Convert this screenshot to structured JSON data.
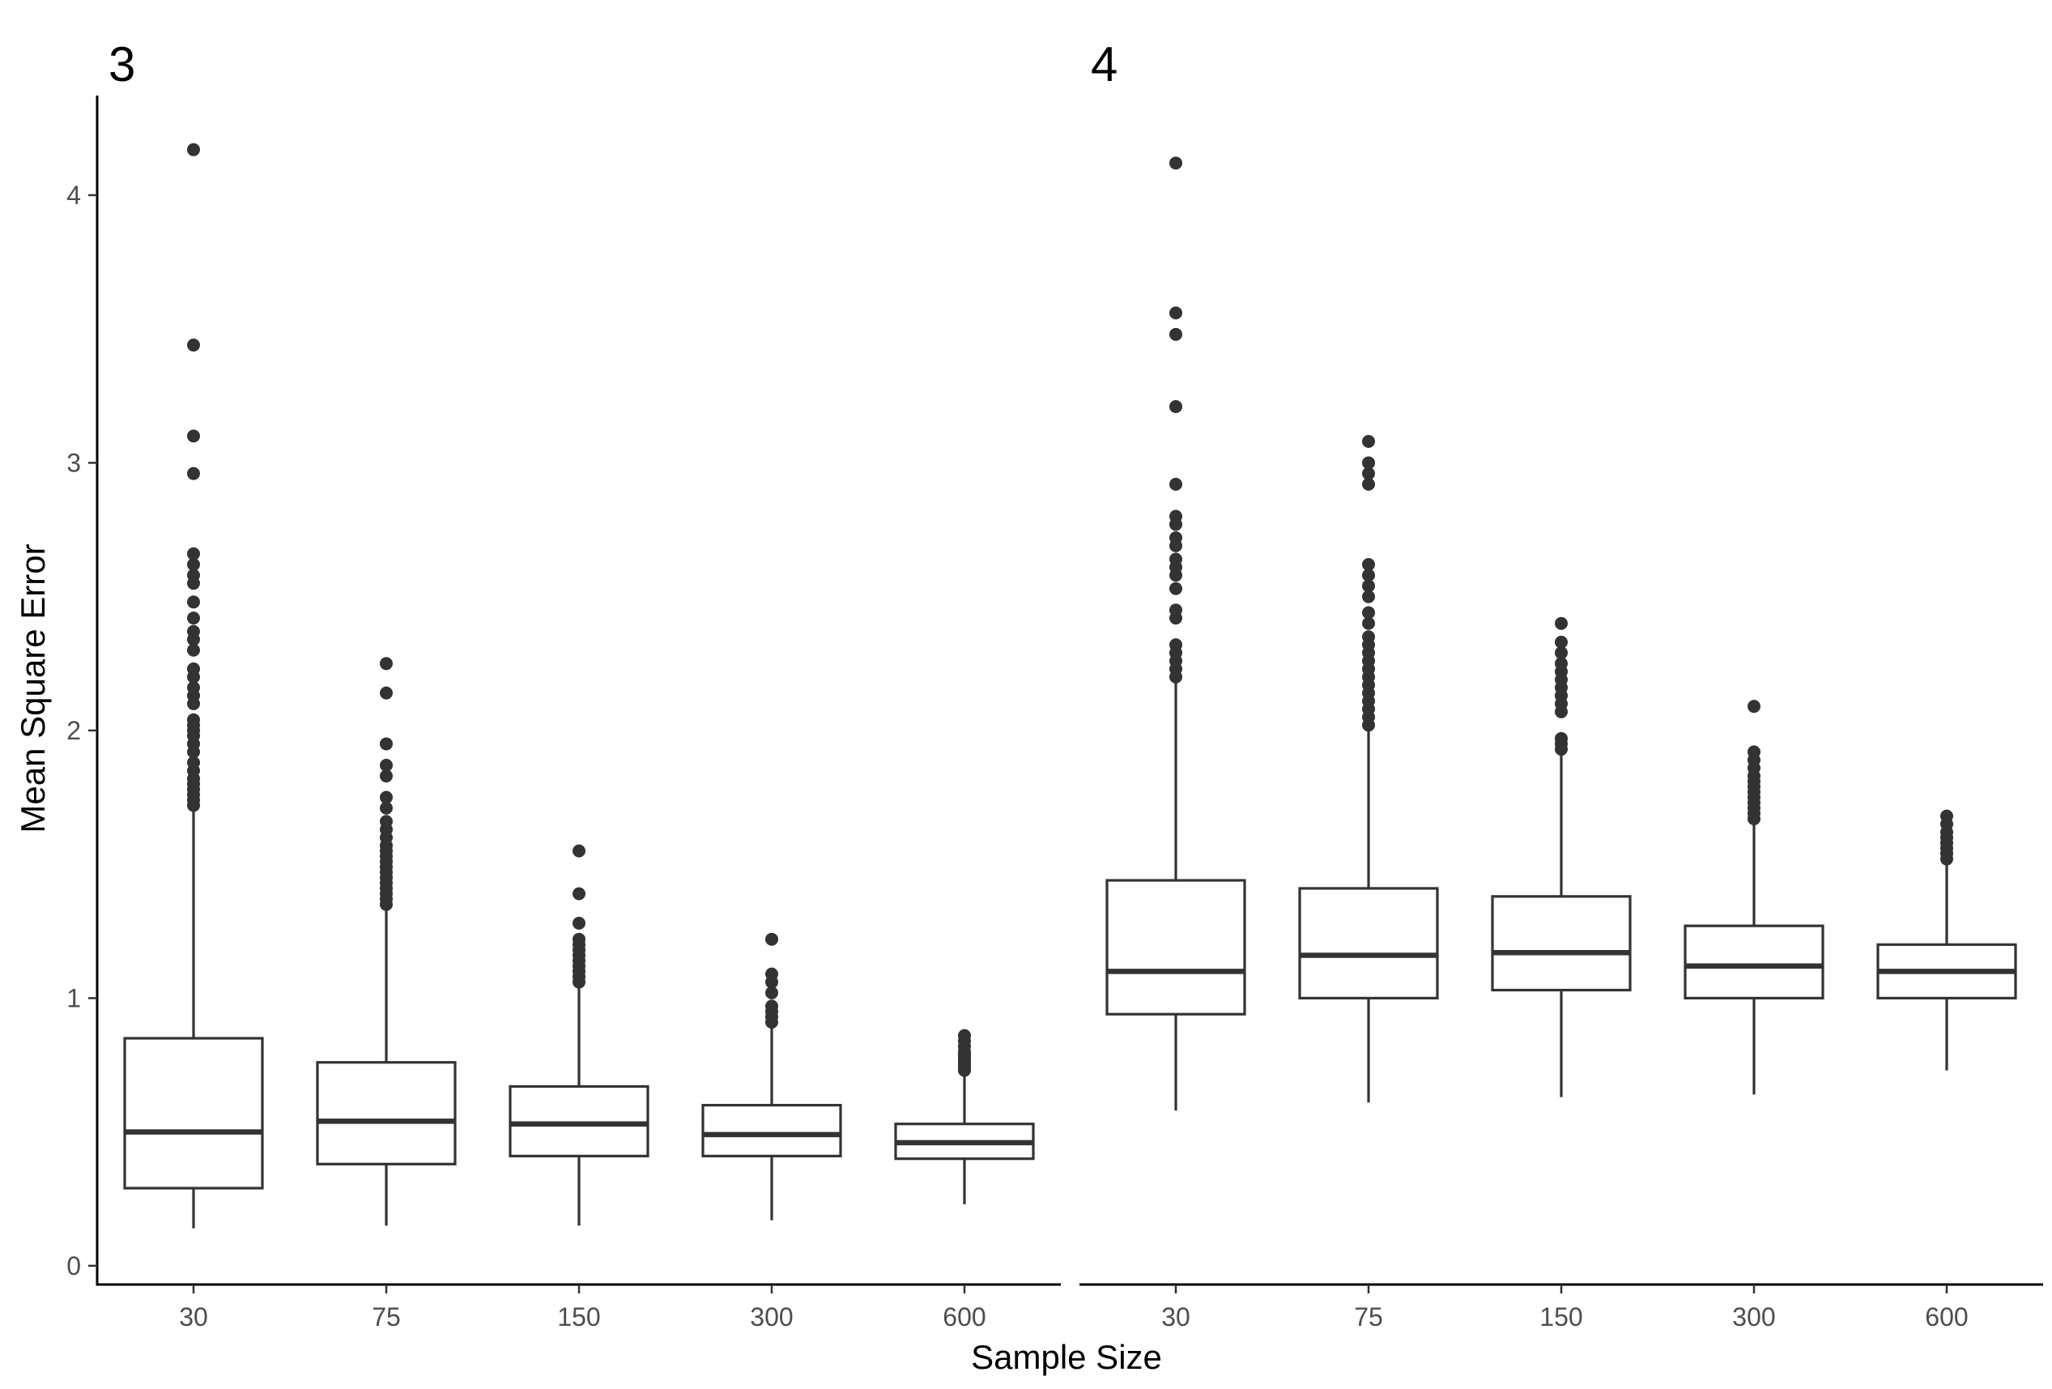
{
  "chart_data": {
    "type": "boxplot",
    "xlabel": "Sample Size",
    "ylabel": "Mean Square Error",
    "categories": [
      "30",
      "75",
      "150",
      "300",
      "600"
    ],
    "ylim": [
      -0.07,
      4.36
    ],
    "yticks": [
      0,
      1,
      2,
      3,
      4
    ],
    "ytick_labels": [
      "0",
      "1",
      "2",
      "3",
      "4"
    ],
    "grid": false,
    "legend": "none",
    "colors": {
      "box_line": "#333333",
      "box_fill": "#ffffff",
      "outlier": "#333333",
      "axis": "#000000"
    },
    "panels": [
      {
        "title": "3",
        "boxes": [
          {
            "category": "30",
            "lower_whisker": 0.14,
            "q1": 0.29,
            "median": 0.5,
            "q3": 0.85,
            "upper_whisker": 1.7,
            "outliers": [
              1.72,
              1.74,
              1.76,
              1.78,
              1.8,
              1.82,
              1.85,
              1.88,
              1.92,
              1.95,
              1.98,
              2.0,
              2.02,
              2.04,
              2.1,
              2.13,
              2.16,
              2.2,
              2.23,
              2.3,
              2.34,
              2.37,
              2.42,
              2.48,
              2.55,
              2.58,
              2.62,
              2.66,
              2.96,
              3.1,
              3.44,
              4.17
            ]
          },
          {
            "category": "75",
            "lower_whisker": 0.15,
            "q1": 0.38,
            "median": 0.54,
            "q3": 0.76,
            "upper_whisker": 1.33,
            "outliers": [
              1.35,
              1.37,
              1.39,
              1.41,
              1.43,
              1.45,
              1.47,
              1.49,
              1.51,
              1.53,
              1.55,
              1.57,
              1.6,
              1.63,
              1.66,
              1.71,
              1.75,
              1.83,
              1.87,
              1.95,
              2.14,
              2.25
            ]
          },
          {
            "category": "150",
            "lower_whisker": 0.15,
            "q1": 0.41,
            "median": 0.53,
            "q3": 0.67,
            "upper_whisker": 1.04,
            "outliers": [
              1.06,
              1.08,
              1.1,
              1.12,
              1.14,
              1.16,
              1.18,
              1.2,
              1.22,
              1.28,
              1.39,
              1.55
            ]
          },
          {
            "category": "300",
            "lower_whisker": 0.17,
            "q1": 0.41,
            "median": 0.49,
            "q3": 0.6,
            "upper_whisker": 0.89,
            "outliers": [
              0.91,
              0.93,
              0.95,
              0.97,
              1.02,
              1.06,
              1.09,
              1.22
            ]
          },
          {
            "category": "600",
            "lower_whisker": 0.23,
            "q1": 0.4,
            "median": 0.46,
            "q3": 0.53,
            "upper_whisker": 0.72,
            "outliers": [
              0.73,
              0.74,
              0.75,
              0.76,
              0.77,
              0.78,
              0.79,
              0.8,
              0.82,
              0.84,
              0.86
            ]
          }
        ]
      },
      {
        "title": "4",
        "boxes": [
          {
            "category": "30",
            "lower_whisker": 0.58,
            "q1": 0.94,
            "median": 1.1,
            "q3": 1.44,
            "upper_whisker": 2.18,
            "outliers": [
              2.2,
              2.23,
              2.26,
              2.29,
              2.32,
              2.42,
              2.45,
              2.53,
              2.58,
              2.61,
              2.64,
              2.69,
              2.72,
              2.77,
              2.8,
              2.92,
              3.21,
              3.48,
              3.56,
              4.12
            ]
          },
          {
            "category": "75",
            "lower_whisker": 0.61,
            "q1": 1.0,
            "median": 1.16,
            "q3": 1.41,
            "upper_whisker": 2.0,
            "outliers": [
              2.02,
              2.05,
              2.08,
              2.11,
              2.14,
              2.17,
              2.2,
              2.23,
              2.26,
              2.29,
              2.32,
              2.35,
              2.4,
              2.44,
              2.5,
              2.54,
              2.58,
              2.62,
              2.92,
              2.96,
              3.0,
              3.08
            ]
          },
          {
            "category": "150",
            "lower_whisker": 0.63,
            "q1": 1.03,
            "median": 1.17,
            "q3": 1.38,
            "upper_whisker": 1.91,
            "outliers": [
              1.93,
              1.95,
              1.97,
              2.07,
              2.1,
              2.13,
              2.16,
              2.19,
              2.22,
              2.25,
              2.29,
              2.33,
              2.4
            ]
          },
          {
            "category": "300",
            "lower_whisker": 0.64,
            "q1": 1.0,
            "median": 1.12,
            "q3": 1.27,
            "upper_whisker": 1.65,
            "outliers": [
              1.67,
              1.69,
              1.71,
              1.73,
              1.75,
              1.77,
              1.79,
              1.81,
              1.83,
              1.86,
              1.89,
              1.92,
              2.09
            ]
          },
          {
            "category": "600",
            "lower_whisker": 0.73,
            "q1": 1.0,
            "median": 1.1,
            "q3": 1.2,
            "upper_whisker": 1.51,
            "outliers": [
              1.52,
              1.54,
              1.56,
              1.58,
              1.6,
              1.62,
              1.65,
              1.68
            ]
          }
        ]
      }
    ]
  }
}
